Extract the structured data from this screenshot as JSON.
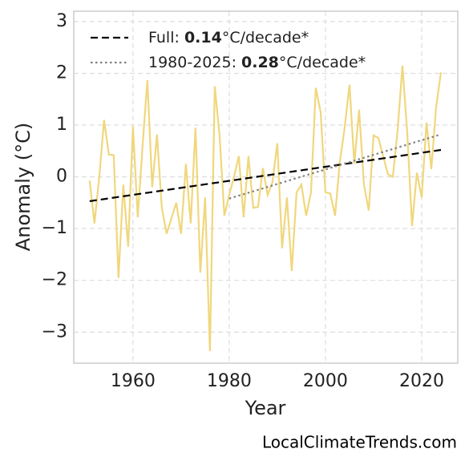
{
  "chart_data": {
    "type": "line",
    "xlabel": "Year",
    "ylabel": "Anomaly (°C)",
    "watermark": "LocalClimateTrends.com",
    "x": [
      1951,
      1952,
      1953,
      1954,
      1955,
      1956,
      1957,
      1958,
      1959,
      1960,
      1961,
      1962,
      1963,
      1964,
      1965,
      1966,
      1967,
      1968,
      1969,
      1970,
      1971,
      1972,
      1973,
      1974,
      1975,
      1976,
      1977,
      1978,
      1979,
      1980,
      1981,
      1982,
      1983,
      1984,
      1985,
      1986,
      1987,
      1988,
      1989,
      1990,
      1991,
      1992,
      1993,
      1994,
      1995,
      1996,
      1997,
      1998,
      1999,
      2000,
      2001,
      2002,
      2003,
      2004,
      2005,
      2006,
      2007,
      2008,
      2009,
      2010,
      2011,
      2012,
      2013,
      2014,
      2015,
      2016,
      2017,
      2018,
      2019,
      2020,
      2021,
      2022,
      2023,
      2024
    ],
    "series": [
      {
        "color": "#f0d77c",
        "values": [
          -0.07,
          -0.9,
          0.0,
          1.1,
          0.43,
          0.42,
          -1.95,
          -0.15,
          -1.35,
          0.97,
          -0.78,
          0.6,
          1.87,
          -0.2,
          0.82,
          -0.6,
          -1.1,
          -0.8,
          -0.5,
          -1.1,
          0.25,
          -0.9,
          0.95,
          -1.85,
          -0.4,
          -3.37,
          1.75,
          0.8,
          -0.75,
          -0.35,
          0.0,
          0.4,
          -0.78,
          0.4,
          -0.6,
          -0.58,
          0.17,
          -0.35,
          -0.1,
          0.65,
          -1.38,
          -0.4,
          -1.82,
          -0.3,
          -0.15,
          -0.75,
          -0.3,
          1.72,
          1.25,
          -0.3,
          -0.32,
          -0.75,
          0.3,
          0.95,
          1.78,
          0.25,
          1.3,
          -0.15,
          -0.65,
          0.8,
          0.75,
          0.4,
          0.05,
          0.0,
          0.9,
          2.15,
          0.85,
          -0.95,
          0.08,
          -0.4,
          1.05,
          0.15,
          1.35,
          2.02
        ]
      },
      {
        "name": "Full: 0.14°C/decade*",
        "color": "#000000",
        "style": "dashed",
        "x": [
          1951,
          2024
        ],
        "values": [
          -0.47,
          0.52
        ]
      },
      {
        "name": "1980-2025: 0.28°C/decade*",
        "color": "#808080",
        "style": "dotted",
        "x": [
          1980,
          2024
        ],
        "values": [
          -0.42,
          0.82
        ]
      }
    ],
    "xlim": [
      1947.7,
      2027.5
    ],
    "xticks": [
      1960,
      1980,
      2000,
      2020
    ],
    "ylim": [
      -3.6,
      3.2
    ],
    "yticks": [
      {
        "value": -3,
        "label": "−3"
      },
      {
        "value": -2,
        "label": "−2"
      },
      {
        "value": -1,
        "label": "−1"
      },
      0,
      1,
      2,
      3
    ],
    "grid": true,
    "legend": "upper left"
  }
}
